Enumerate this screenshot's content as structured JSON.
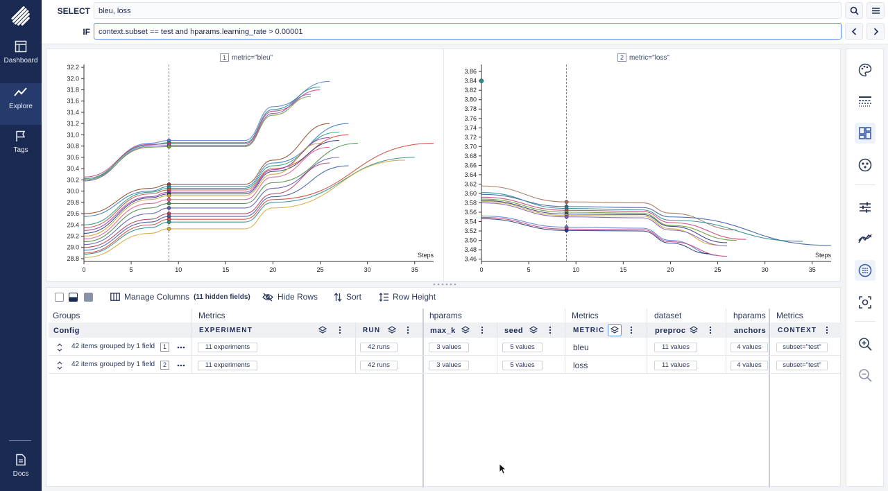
{
  "nav": {
    "items": [
      {
        "label": "Dashboard",
        "icon": "dashboard-icon"
      },
      {
        "label": "Explore",
        "icon": "explore-icon",
        "active": true
      },
      {
        "label": "Tags",
        "icon": "flag-icon"
      },
      {
        "label": "Docs",
        "icon": "docs-icon"
      }
    ]
  },
  "query": {
    "select_label": "SELECT",
    "select_value": "bleu, loss",
    "if_label": "IF",
    "if_value": "context.subset == test and hparams.learning_rate > 0.00001"
  },
  "charts": [
    {
      "index": "1",
      "title": "metric=\"bleu\"",
      "xlabel": "Steps",
      "yticks": [
        "32.2",
        "32.0",
        "31.8",
        "31.6",
        "31.4",
        "31.2",
        "31.0",
        "30.8",
        "30.6",
        "30.4",
        "30.2",
        "30.0",
        "29.8",
        "29.6",
        "29.4",
        "29.2",
        "29.0",
        "28.8"
      ],
      "xticks": [
        "0",
        "5",
        "10",
        "15",
        "20",
        "25",
        "30",
        "35"
      ]
    },
    {
      "index": "2",
      "title": "metric=\"loss\"",
      "xlabel": "Steps",
      "yticks": [
        "3.86",
        "3.84",
        "3.82",
        "3.80",
        "3.78",
        "3.76",
        "3.74",
        "3.72",
        "3.70",
        "3.68",
        "3.66",
        "3.64",
        "3.62",
        "3.60",
        "3.58",
        "3.56",
        "3.54",
        "3.52",
        "3.50",
        "3.48",
        "3.46"
      ],
      "xticks": [
        "0",
        "5",
        "10",
        "15",
        "20",
        "25",
        "30",
        "35"
      ]
    }
  ],
  "chart_data": [
    {
      "type": "line",
      "title": "metric=\"bleu\"",
      "xlabel": "Steps",
      "ylabel": "",
      "xlim": [
        0,
        37
      ],
      "ylim": [
        28.75,
        32.25
      ],
      "crosshair_x": 9,
      "series": [
        {
          "color": "#5b7fd6",
          "x": [
            0,
            7,
            9,
            17,
            20,
            26
          ],
          "y": [
            30.2,
            30.85,
            30.9,
            30.9,
            31.5,
            31.95
          ]
        },
        {
          "color": "#2a8c8c",
          "x": [
            0,
            7,
            9,
            17,
            20,
            25
          ],
          "y": [
            30.22,
            30.82,
            30.86,
            30.86,
            31.45,
            31.85
          ]
        },
        {
          "color": "#c7447a",
          "x": [
            0,
            7,
            9,
            17,
            20,
            25
          ],
          "y": [
            30.25,
            30.83,
            30.84,
            30.84,
            31.42,
            31.8
          ]
        },
        {
          "color": "#7a5cb8",
          "x": [
            0,
            7,
            9,
            17,
            20,
            24
          ],
          "y": [
            30.18,
            30.8,
            30.81,
            30.81,
            31.38,
            31.72
          ]
        },
        {
          "color": "#6a9c3a",
          "x": [
            0,
            7,
            9,
            17,
            20,
            24
          ],
          "y": [
            30.2,
            30.78,
            30.79,
            30.79,
            31.35,
            31.68
          ]
        },
        {
          "color": "#8a4a2a",
          "x": [
            0,
            7,
            9,
            17,
            20,
            26
          ],
          "y": [
            29.6,
            30.05,
            30.12,
            30.12,
            30.55,
            31.2
          ]
        },
        {
          "color": "#3a7ac8",
          "x": [
            0,
            7,
            9,
            17,
            20,
            28
          ],
          "y": [
            29.55,
            30.0,
            30.08,
            30.08,
            30.5,
            31.2
          ]
        },
        {
          "color": "#1b9c7a",
          "x": [
            0,
            7,
            9,
            17,
            20,
            27
          ],
          "y": [
            29.4,
            29.98,
            30.05,
            30.05,
            30.45,
            31.05
          ]
        },
        {
          "color": "#d24a3a",
          "x": [
            0,
            7,
            9,
            17,
            20,
            28
          ],
          "y": [
            29.35,
            29.95,
            30.02,
            30.02,
            30.4,
            31.0
          ]
        },
        {
          "color": "#9c3ab8",
          "x": [
            0,
            7,
            9,
            17,
            20,
            26
          ],
          "y": [
            29.3,
            29.9,
            29.98,
            29.98,
            30.38,
            30.95
          ]
        },
        {
          "color": "#2a3a7a",
          "x": [
            0,
            7,
            9,
            17,
            20,
            27
          ],
          "y": [
            29.25,
            29.88,
            29.95,
            29.95,
            30.35,
            30.9
          ]
        },
        {
          "color": "#c8a03a",
          "x": [
            0,
            7,
            9,
            17,
            20,
            25
          ],
          "y": [
            29.2,
            29.85,
            29.92,
            29.92,
            30.3,
            30.85
          ]
        },
        {
          "color": "#e05a8a",
          "x": [
            0,
            7,
            9,
            17,
            20,
            26
          ],
          "y": [
            29.15,
            29.78,
            29.85,
            29.85,
            30.25,
            30.78
          ]
        },
        {
          "color": "#4a8a4a",
          "x": [
            0,
            7,
            9,
            17,
            20,
            29
          ],
          "y": [
            29.1,
            29.7,
            29.78,
            29.78,
            30.15,
            30.85
          ]
        },
        {
          "color": "#5a5ab8",
          "x": [
            0,
            7,
            9,
            17,
            20,
            27
          ],
          "y": [
            29.05,
            29.6,
            29.7,
            29.7,
            30.05,
            30.6
          ]
        },
        {
          "color": "#b83a5a",
          "x": [
            0,
            7,
            9,
            17,
            20,
            26
          ],
          "y": [
            29.0,
            29.5,
            29.6,
            29.6,
            29.95,
            30.5
          ]
        },
        {
          "color": "#3a5aa8",
          "x": [
            0,
            7,
            9,
            17,
            20,
            28
          ],
          "y": [
            28.95,
            29.45,
            29.55,
            29.55,
            29.9,
            30.45
          ]
        },
        {
          "color": "#d4463a",
          "x": [
            0,
            7,
            9,
            17,
            20,
            37
          ],
          "y": [
            28.9,
            29.4,
            29.5,
            29.5,
            29.85,
            30.85
          ]
        },
        {
          "color": "#2a8c8c",
          "x": [
            0,
            7,
            9,
            17,
            20,
            35
          ],
          "y": [
            28.88,
            29.35,
            29.45,
            29.45,
            29.8,
            30.6
          ]
        },
        {
          "color": "#d4a83a",
          "x": [
            0,
            7,
            9,
            17,
            20,
            34
          ],
          "y": [
            28.82,
            29.25,
            29.33,
            29.33,
            29.7,
            30.55
          ]
        }
      ]
    },
    {
      "type": "line",
      "title": "metric=\"loss\"",
      "xlabel": "Steps",
      "ylabel": "",
      "xlim": [
        0,
        37
      ],
      "ylim": [
        3.455,
        3.875
      ],
      "crosshair_x": 9,
      "series": [
        {
          "color": "#a0705a",
          "x": [
            0,
            9,
            17,
            20,
            27
          ],
          "y": [
            3.616,
            3.582,
            3.58,
            3.558,
            3.522
          ]
        },
        {
          "color": "#3a5aa8",
          "x": [
            0,
            9,
            17,
            20,
            37
          ],
          "y": [
            3.598,
            3.572,
            3.57,
            3.55,
            3.489
          ]
        },
        {
          "color": "#2a8c8c",
          "x": [
            0,
            9,
            17,
            20,
            34
          ],
          "y": [
            3.602,
            3.568,
            3.565,
            3.543,
            3.498
          ]
        },
        {
          "color": "#c7447a",
          "x": [
            0,
            9,
            17,
            20,
            28
          ],
          "y": [
            3.592,
            3.564,
            3.562,
            3.538,
            3.502
          ]
        },
        {
          "color": "#6a9c3a",
          "x": [
            0,
            9,
            17,
            20,
            27
          ],
          "y": [
            3.588,
            3.56,
            3.558,
            3.532,
            3.5
          ]
        },
        {
          "color": "#2a3a7a",
          "x": [
            0,
            9,
            17,
            20,
            26
          ],
          "y": [
            3.585,
            3.556,
            3.555,
            3.53,
            3.495
          ]
        },
        {
          "color": "#d4a83a",
          "x": [
            0,
            9,
            17,
            20,
            25
          ],
          "y": [
            3.583,
            3.553,
            3.552,
            3.525,
            3.49
          ]
        },
        {
          "color": "#7a5cb8",
          "x": [
            0,
            9,
            17,
            20,
            26
          ],
          "y": [
            3.58,
            3.55,
            3.548,
            3.522,
            3.488
          ]
        },
        {
          "color": "#5b7fd6",
          "x": [
            0,
            9,
            17,
            20,
            25
          ],
          "y": [
            3.552,
            3.528,
            3.526,
            3.5,
            3.468
          ]
        },
        {
          "color": "#c7447a",
          "x": [
            0,
            9,
            17,
            20,
            26
          ],
          "y": [
            3.549,
            3.524,
            3.523,
            3.497,
            3.466
          ]
        },
        {
          "color": "#2a3a7a",
          "x": [
            0,
            9,
            17,
            20,
            24
          ],
          "y": [
            3.546,
            3.521,
            3.52,
            3.494,
            3.472
          ]
        }
      ],
      "markers": [
        {
          "x": 0,
          "y": 3.84,
          "color": "#2a8c8c"
        }
      ]
    }
  ],
  "toolbar": {
    "manage_columns": "Manage Columns",
    "hidden_fields": "(11 hidden fields)",
    "hide_rows": "Hide Rows",
    "sort": "Sort",
    "row_height": "Row Height"
  },
  "table": {
    "groups": [
      "Groups",
      "Metrics",
      "hparams",
      "Metrics",
      "dataset",
      "hparams",
      "Metrics"
    ],
    "columns": [
      "Config",
      "EXPERIMENT",
      "RUN",
      "max_k",
      "seed",
      "METRIC",
      "preproc",
      "anchors",
      "CONTEXT"
    ],
    "rows": [
      {
        "summary": "42 items grouped by 1 field",
        "index": "1",
        "experiment": "11 experiments",
        "run": "42 runs",
        "max_k": "3 values",
        "seed": "5 values",
        "metric": "bleu",
        "preproc": "11 values",
        "anchors": "4 values",
        "context": "subset=\"test\""
      },
      {
        "summary": "42 items grouped by 1 field",
        "index": "2",
        "experiment": "11 experiments",
        "run": "42 runs",
        "max_k": "3 values",
        "seed": "5 values",
        "metric": "loss",
        "preproc": "11 values",
        "anchors": "4 values",
        "context": "subset=\"test\""
      }
    ]
  },
  "right_bar": [
    "palette-icon",
    "line-style-icon",
    "grid-layout-icon",
    "color-group-icon",
    "sliders-icon",
    "smoothing-icon",
    "crosshair-icon",
    "screenshot-icon",
    "zoom-in-icon",
    "zoom-out-icon"
  ],
  "colors": {
    "sidebar": "#1b2a52",
    "accent": "#3a5aa8"
  }
}
